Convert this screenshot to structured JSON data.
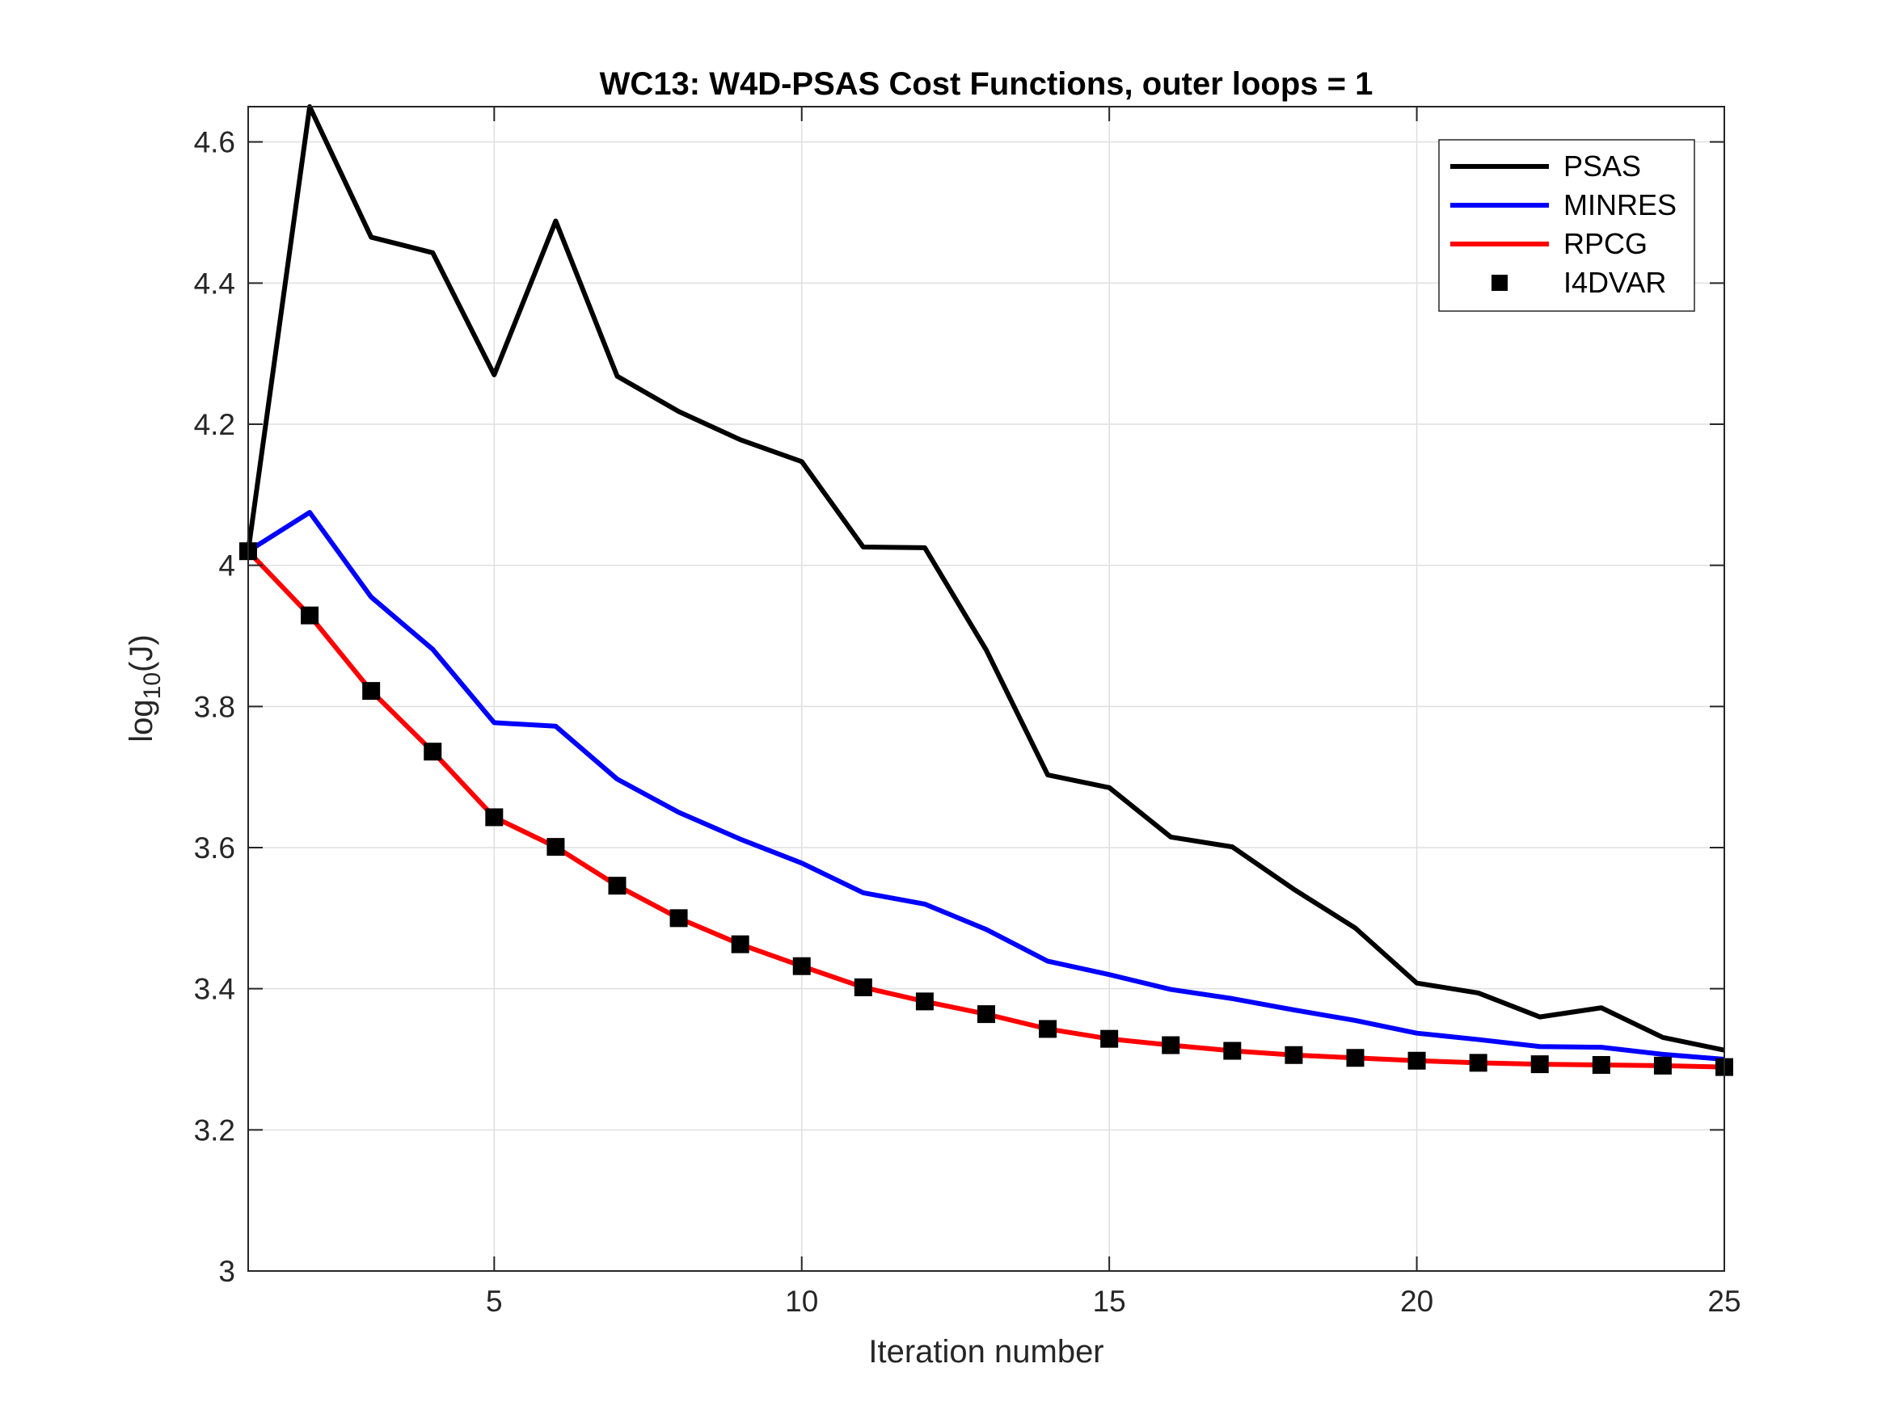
{
  "chart_data": {
    "type": "line",
    "title": "WC13: W4D-PSAS Cost Functions, outer loops = 1",
    "xlabel": "Iteration number",
    "ylabel": {
      "base": "log",
      "subscript": "10",
      "suffix": "(J)"
    },
    "xlim": [
      1,
      25
    ],
    "ylim": [
      3,
      4.65
    ],
    "xticks": [
      5,
      10,
      15,
      20,
      25
    ],
    "yticks": [
      3,
      3.2,
      3.4,
      3.6,
      3.8,
      4,
      4.2,
      4.4,
      4.6
    ],
    "xtick_labels": [
      "5",
      "10",
      "15",
      "20",
      "25"
    ],
    "ytick_labels": [
      "3",
      "3.2",
      "3.4",
      "3.6",
      "3.8",
      "4",
      "4.2",
      "4.4",
      "4.6"
    ],
    "grid": true,
    "legend_position": "top-right",
    "x": [
      1,
      2,
      3,
      4,
      5,
      6,
      7,
      8,
      9,
      10,
      11,
      12,
      13,
      14,
      15,
      16,
      17,
      18,
      19,
      20,
      21,
      22,
      23,
      24,
      25
    ],
    "series": [
      {
        "name": "PSAS",
        "color": "#000000",
        "style": "line",
        "values": [
          4.02,
          4.65,
          4.465,
          4.443,
          4.27,
          4.488,
          4.268,
          4.218,
          4.178,
          4.147,
          4.026,
          4.025,
          3.88,
          3.703,
          3.685,
          3.615,
          3.601,
          3.541,
          3.486,
          3.408,
          3.394,
          3.36,
          3.373,
          3.331,
          3.313
        ]
      },
      {
        "name": "MINRES",
        "color": "#0000ff",
        "style": "line",
        "values": [
          4.02,
          4.075,
          3.955,
          3.881,
          3.777,
          3.772,
          3.697,
          3.65,
          3.612,
          3.578,
          3.536,
          3.52,
          3.484,
          3.439,
          3.42,
          3.399,
          3.386,
          3.37,
          3.355,
          3.337,
          3.328,
          3.318,
          3.317,
          3.307,
          3.3
        ]
      },
      {
        "name": "RPCG",
        "color": "#ff0000",
        "style": "line",
        "values": [
          4.02,
          3.929,
          3.822,
          3.736,
          3.643,
          3.601,
          3.546,
          3.5,
          3.463,
          3.432,
          3.402,
          3.382,
          3.364,
          3.343,
          3.329,
          3.32,
          3.312,
          3.306,
          3.302,
          3.298,
          3.295,
          3.293,
          3.292,
          3.291,
          3.289
        ]
      },
      {
        "name": "I4DVAR",
        "color": "#000000",
        "style": "markers",
        "values": [
          4.02,
          3.929,
          3.822,
          3.736,
          3.643,
          3.601,
          3.546,
          3.5,
          3.463,
          3.432,
          3.402,
          3.382,
          3.364,
          3.343,
          3.329,
          3.32,
          3.312,
          3.306,
          3.302,
          3.298,
          3.295,
          3.293,
          3.292,
          3.291,
          3.289
        ]
      }
    ]
  }
}
